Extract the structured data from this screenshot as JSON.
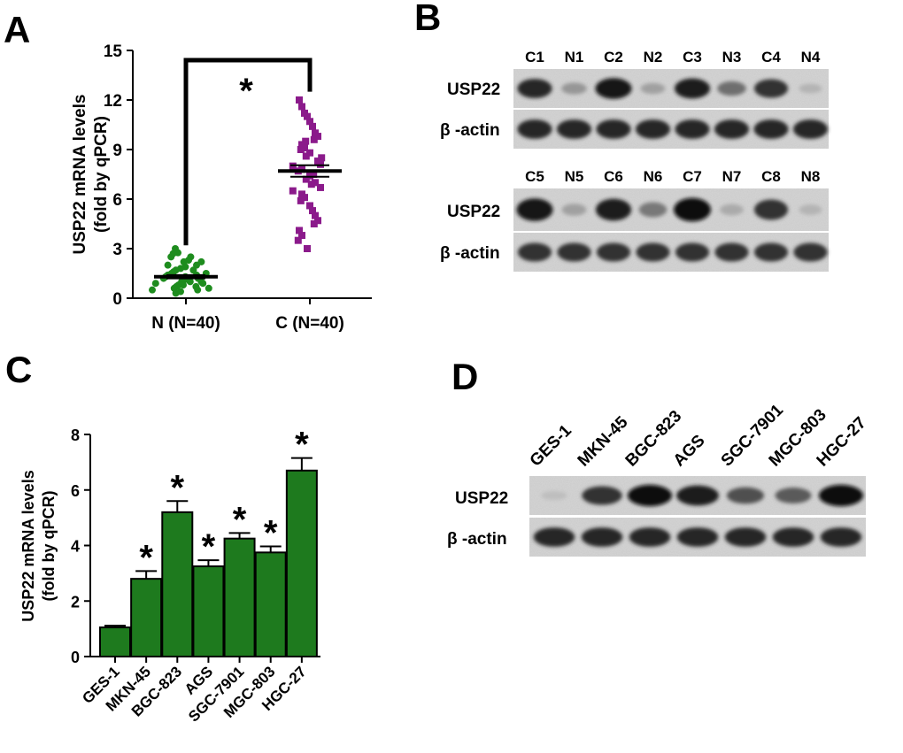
{
  "panels": {
    "A": "A",
    "B": "B",
    "C": "C",
    "D": "D"
  },
  "chart_data": [
    {
      "panel": "A",
      "type": "scatter",
      "ylabel_line1": "USP22 mRNA levels",
      "ylabel_line2": "(fold by qPCR)",
      "ylim": [
        0,
        15
      ],
      "yticks": [
        0,
        3,
        6,
        9,
        12,
        15
      ],
      "categories": [
        "N (N=40)",
        "C (N=40)"
      ],
      "significance": "*",
      "series": [
        {
          "category": "N (N=40)",
          "color": "#1e8c1e",
          "marker": "circle",
          "mean": 1.3,
          "sem": 0.1,
          "values": [
            3.0,
            2.75,
            2.7,
            2.5,
            2.5,
            2.3,
            2.2,
            2.2,
            2.0,
            2.0,
            1.9,
            1.8,
            1.7,
            1.7,
            1.6,
            1.5,
            1.5,
            1.4,
            1.4,
            1.3,
            1.3,
            1.2,
            1.2,
            1.1,
            1.1,
            1.0,
            1.0,
            1.0,
            0.9,
            0.9,
            0.8,
            0.8,
            0.7,
            0.7,
            0.6,
            0.6,
            0.5,
            0.5,
            0.4,
            0.3
          ]
        },
        {
          "category": "C (N=40)",
          "color": "#8b1a8b",
          "marker": "square",
          "mean": 7.7,
          "sem": 0.35,
          "values": [
            12.0,
            11.6,
            11.2,
            11.0,
            10.7,
            10.4,
            10.0,
            9.8,
            9.6,
            9.5,
            9.3,
            9.1,
            9.0,
            8.8,
            8.6,
            8.5,
            8.3,
            8.1,
            8.0,
            7.8,
            7.7,
            7.5,
            7.4,
            7.2,
            7.0,
            6.9,
            6.7,
            6.5,
            6.3,
            6.1,
            5.9,
            5.6,
            5.3,
            5.0,
            4.7,
            4.5,
            4.1,
            3.8,
            3.5,
            3.0
          ]
        }
      ]
    },
    {
      "panel": "C",
      "type": "bar",
      "ylabel_line1": "USP22 mRNA levels",
      "ylabel_line2": "(fold by qPCR)",
      "ylim": [
        0,
        8
      ],
      "yticks": [
        0,
        2,
        4,
        6,
        8
      ],
      "categories": [
        "GES-1",
        "MKN-45",
        "BGC-823",
        "AGS",
        "SGC-7901",
        "MGC-803",
        "HGC-27"
      ],
      "values": [
        1.05,
        2.8,
        5.2,
        3.25,
        4.25,
        3.75,
        6.7
      ],
      "errors": [
        0.06,
        0.28,
        0.4,
        0.22,
        0.2,
        0.22,
        0.45
      ],
      "significance": [
        "",
        "*",
        "*",
        "*",
        "*",
        "*",
        "*"
      ],
      "bar_color": "#1e7a1e"
    }
  ],
  "blot_B": {
    "lanes_top": [
      "C1",
      "N1",
      "C2",
      "N2",
      "C3",
      "N3",
      "C4",
      "N4"
    ],
    "lanes_bottom": [
      "C5",
      "N5",
      "C6",
      "N6",
      "C7",
      "N7",
      "C8",
      "N8"
    ],
    "rows": [
      "USP22",
      "β -actin"
    ],
    "usp22_top": [
      0.85,
      0.3,
      0.95,
      0.25,
      0.9,
      0.5,
      0.8,
      0.15
    ],
    "usp22_bottom": [
      0.95,
      0.25,
      0.9,
      0.45,
      1.0,
      0.2,
      0.8,
      0.15
    ],
    "actin_top": [
      0.85,
      0.85,
      0.85,
      0.85,
      0.85,
      0.85,
      0.85,
      0.85
    ],
    "actin_bottom": [
      0.8,
      0.8,
      0.8,
      0.8,
      0.8,
      0.8,
      0.8,
      0.8
    ]
  },
  "blot_D": {
    "lanes": [
      "GES-1",
      "MKN-45",
      "BGC-823",
      "AGS",
      "SGC-7901",
      "MGC-803",
      "HGC-27"
    ],
    "rows": [
      "USP22",
      "β -actin"
    ],
    "usp22": [
      0.1,
      0.8,
      1.0,
      0.9,
      0.65,
      0.6,
      1.0
    ],
    "actin": [
      0.85,
      0.85,
      0.85,
      0.85,
      0.85,
      0.85,
      0.85
    ]
  }
}
